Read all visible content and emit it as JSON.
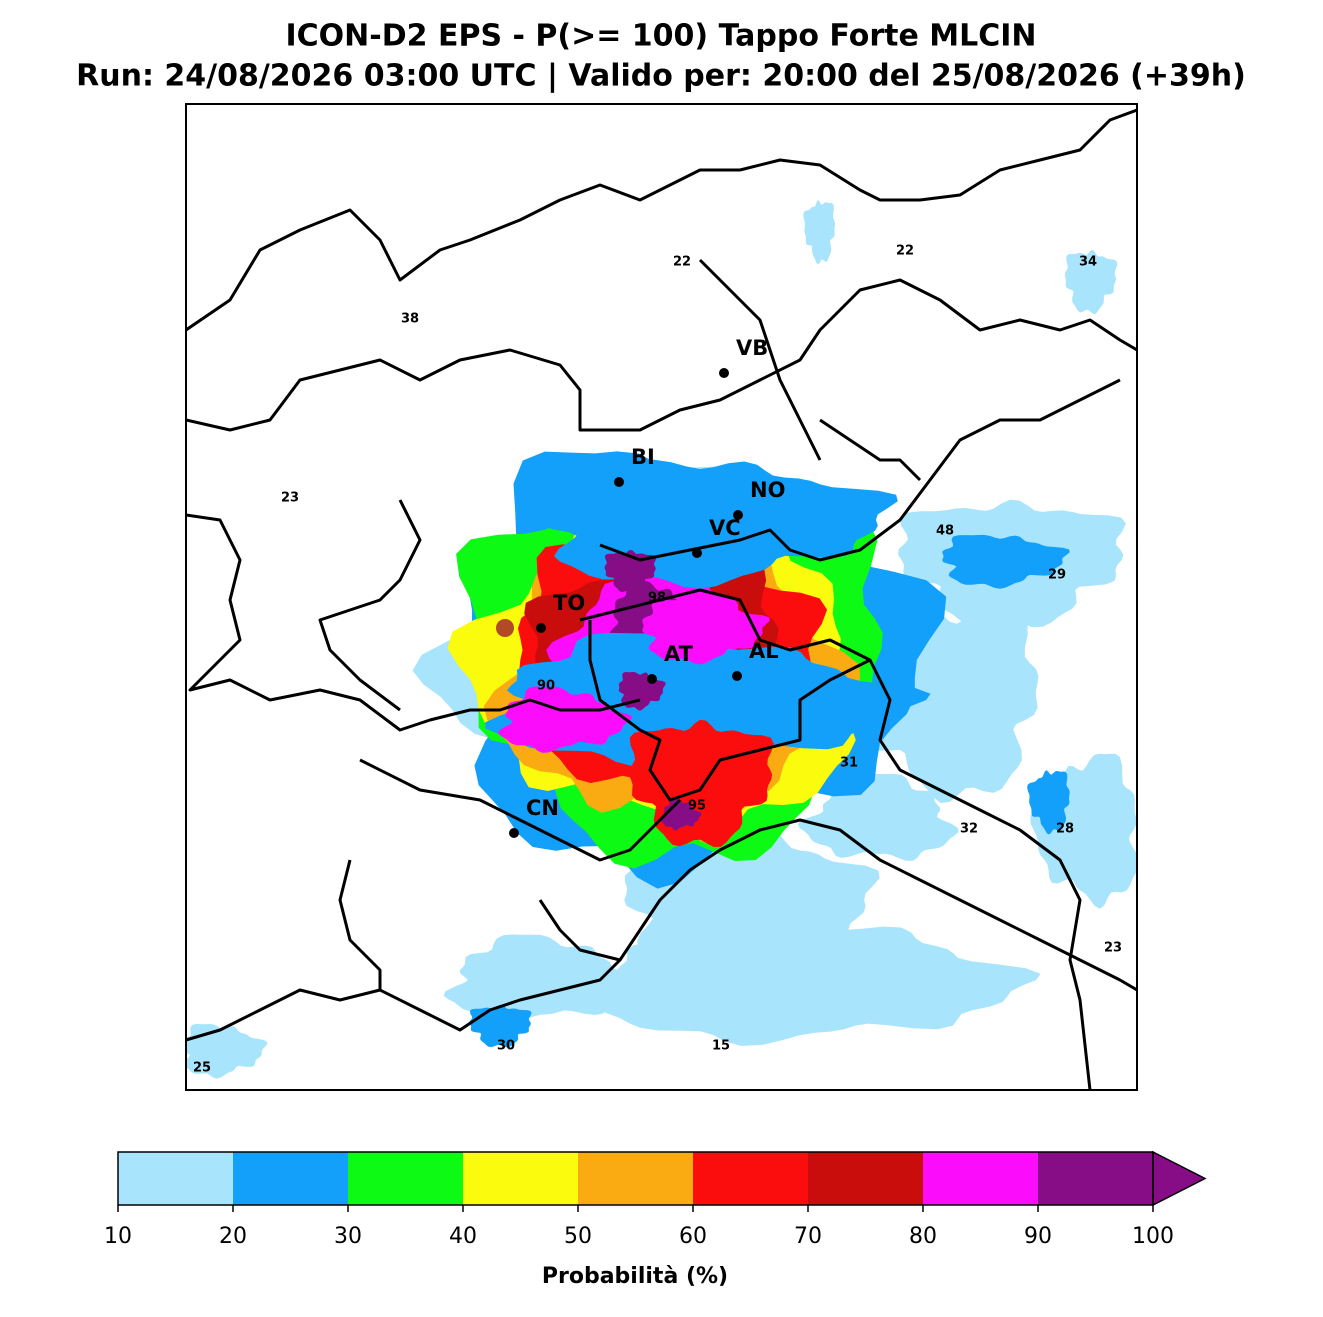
{
  "title": "ICON-D2 EPS - P(>= 100) Tappo Forte MLCIN",
  "subtitle": "Run: 24/08/2026 03:00 UTC | Valido per: 20:00 del 25/08/2026 (+39h)",
  "cities": [
    "VB",
    "BI",
    "NO",
    "VC",
    "TO",
    "AT",
    "AL",
    "CN"
  ],
  "contour_labels": [
    22,
    22,
    34,
    38,
    23,
    48,
    29,
    98,
    90,
    31,
    95,
    32,
    28,
    23,
    30,
    15,
    25
  ],
  "colorbar": {
    "label": "Probabilità (%)",
    "ticks": [
      10,
      20,
      30,
      40,
      50,
      60,
      70,
      80,
      90,
      100
    ],
    "colors": [
      "#a8e4fb",
      "#12a0fa",
      "#0dfa15",
      "#fbfb0d",
      "#fbab12",
      "#fb0d0d",
      "#c90d0d",
      "#fb0dfb",
      "#870d87"
    ]
  }
}
